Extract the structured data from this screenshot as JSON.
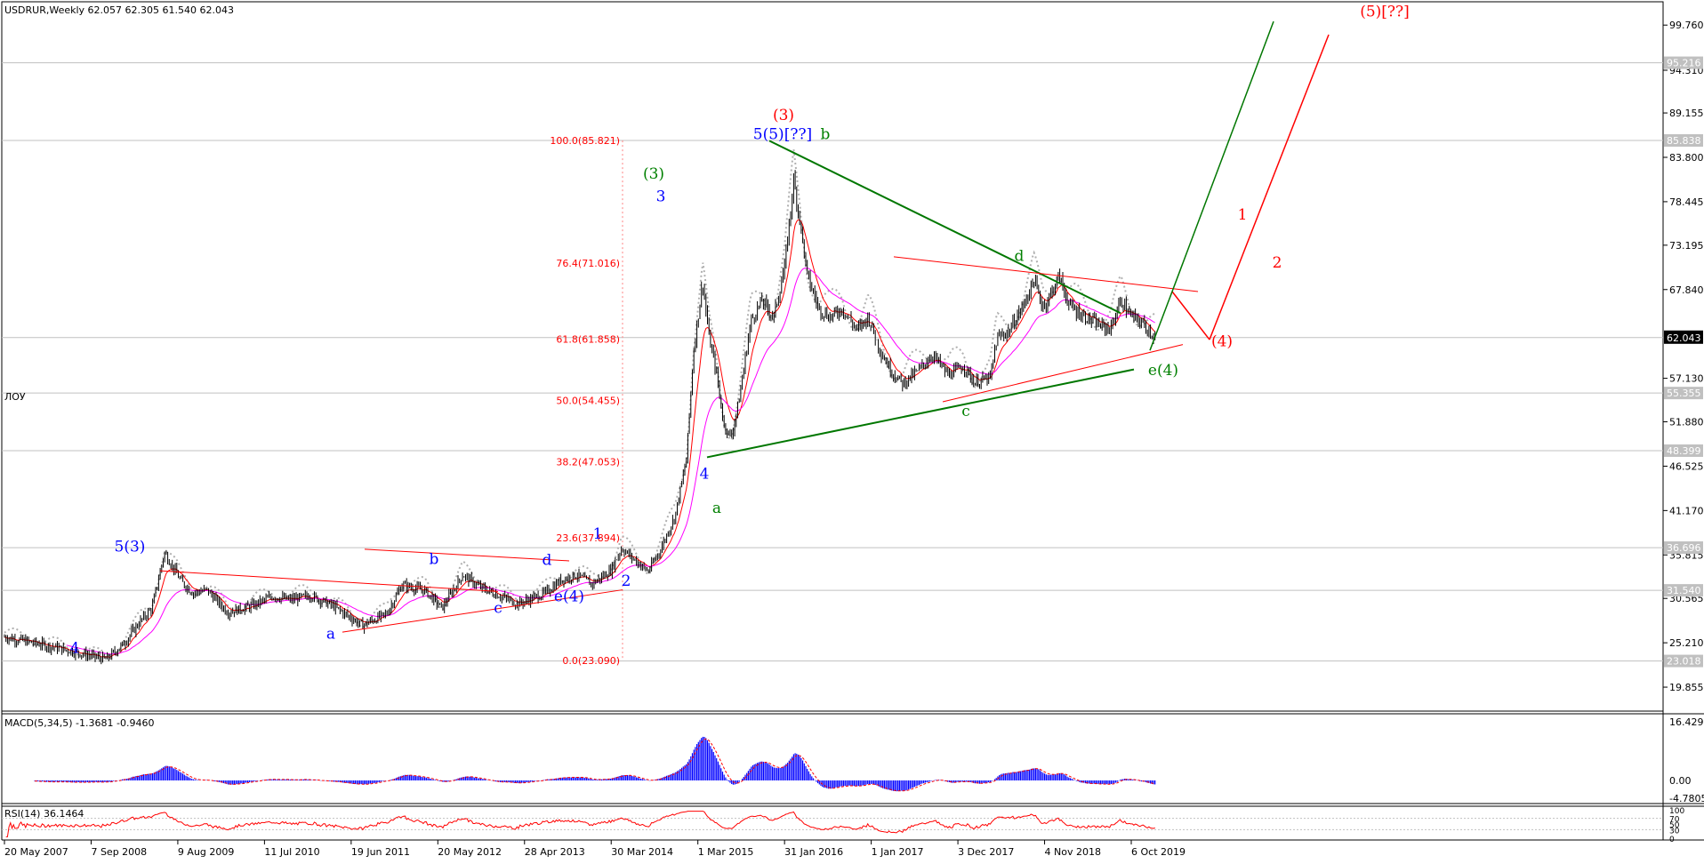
{
  "header": {
    "symbol_info": "USDRUR,Weekly  62.057 62.305 61.540 62.043",
    "side_label": "ЛОУ"
  },
  "price_axis": {
    "ticks": [
      "99.760",
      "94.310",
      "89.155",
      "83.800",
      "78.445",
      "73.195",
      "67.840",
      "62.043",
      "57.130",
      "51.880",
      "46.525",
      "41.170",
      "35.815",
      "30.565",
      "25.210",
      "19.855"
    ],
    "current_price": "62.043",
    "level_labels": [
      "95.216",
      "85.838",
      "55.355",
      "48.399",
      "36.696",
      "31.540",
      "23.018"
    ]
  },
  "date_axis": {
    "labels": [
      "20 May 2007",
      "7 Sep 2008",
      "9 Aug 2009",
      "11 Jul 2010",
      "19 Jun 2011",
      "20 May 2012",
      "28 Apr 2013",
      "30 Mar 2014",
      "1 Mar 2015",
      "31 Jan 2016",
      "1 Jan 2017",
      "3 Dec 2017",
      "4 Nov 2018",
      "6 Oct 2019"
    ]
  },
  "fib_levels": [
    {
      "label": "100.0(85.821)",
      "value": 85.821
    },
    {
      "label": "76.4(71.016)",
      "value": 71.016
    },
    {
      "label": "61.8(61.858)",
      "value": 61.858
    },
    {
      "label": "50.0(54.455)",
      "value": 54.455
    },
    {
      "label": "38.2(47.053)",
      "value": 47.053
    },
    {
      "label": "23.6(37.894)",
      "value": 37.894
    },
    {
      "label": "0.0(23.090)",
      "value": 23.09
    }
  ],
  "wave_labels": [
    {
      "text": "4",
      "color": "blue"
    },
    {
      "text": "5(3)",
      "color": "blue"
    },
    {
      "text": "a",
      "color": "blue"
    },
    {
      "text": "b",
      "color": "blue"
    },
    {
      "text": "c",
      "color": "blue"
    },
    {
      "text": "d",
      "color": "blue"
    },
    {
      "text": "e(4)",
      "color": "blue"
    },
    {
      "text": "1",
      "color": "blue"
    },
    {
      "text": "2",
      "color": "blue"
    },
    {
      "text": "3",
      "color": "blue"
    },
    {
      "text": "(3)",
      "color": "green"
    },
    {
      "text": "4",
      "color": "blue"
    },
    {
      "text": "a",
      "color": "green"
    },
    {
      "text": "5(5)[??]",
      "color": "blue"
    },
    {
      "text": "(3)",
      "color": "red"
    },
    {
      "text": "b",
      "color": "green"
    },
    {
      "text": "c",
      "color": "green"
    },
    {
      "text": "d",
      "color": "green"
    },
    {
      "text": "e(4)",
      "color": "green"
    },
    {
      "text": "(4)",
      "color": "red"
    },
    {
      "text": "1",
      "color": "red"
    },
    {
      "text": "2",
      "color": "red"
    },
    {
      "text": "(5)[??]",
      "color": "red"
    }
  ],
  "macd": {
    "label": "MACD(5,34,5) -1.3681 -0.9460",
    "ticks": [
      "16.4292",
      "0.00",
      "-4.7805"
    ]
  },
  "rsi": {
    "label": "RSI(14) 36.1464",
    "ticks": [
      "100",
      "70",
      "50",
      "30",
      "0"
    ]
  },
  "colors": {
    "background": "#ffffff",
    "candle": "#000000",
    "ma_fast": "#ff0000",
    "ma_slow": "#ff00ff",
    "dotted": "#b0b0b0",
    "green_line": "#007700",
    "red_line": "#ff0000",
    "wave_blue": "#0000ff",
    "wave_green": "#008000",
    "wave_red": "#ff0000",
    "macd_hist": "#0000ff",
    "rsi_line": "#ff0000",
    "grid": "#c0c0c0"
  },
  "chart_data": {
    "type": "candlestick",
    "title": "USDRUR,Weekly",
    "x_labels": [
      "20 May 2007",
      "7 Sep 2008",
      "9 Aug 2009",
      "11 Jul 2010",
      "19 Jun 2011",
      "20 May 2012",
      "28 Apr 2013",
      "30 Mar 2014",
      "1 Mar 2015",
      "31 Jan 2016",
      "1 Jan 2017",
      "3 Dec 2017",
      "4 Nov 2018",
      "6 Oct 2019"
    ],
    "ylim": [
      17.5,
      101.5
    ],
    "ohlc_last": {
      "open": 62.057,
      "high": 62.305,
      "low": 61.54,
      "close": 62.043
    },
    "price_path": [
      {
        "date": "2007-05-20",
        "close": 25.9
      },
      {
        "date": "2007-10-01",
        "close": 25.1
      },
      {
        "date": "2008-01-01",
        "close": 24.5
      },
      {
        "date": "2008-07-01",
        "close": 23.2
      },
      {
        "date": "2008-09-07",
        "close": 25.0
      },
      {
        "date": "2008-11-15",
        "close": 27.8
      },
      {
        "date": "2009-01-01",
        "close": 29.4
      },
      {
        "date": "2009-02-20",
        "close": 36.1
      },
      {
        "date": "2009-05-01",
        "close": 32.5
      },
      {
        "date": "2009-06-15",
        "close": 31.2
      },
      {
        "date": "2009-08-09",
        "close": 31.6
      },
      {
        "date": "2009-11-01",
        "close": 28.9
      },
      {
        "date": "2010-02-01",
        "close": 29.6
      },
      {
        "date": "2010-05-01",
        "close": 30.8
      },
      {
        "date": "2010-07-11",
        "close": 30.4
      },
      {
        "date": "2010-10-01",
        "close": 30.9
      },
      {
        "date": "2011-01-01",
        "close": 29.6
      },
      {
        "date": "2011-04-25",
        "close": 27.3
      },
      {
        "date": "2011-06-19",
        "close": 28.1
      },
      {
        "date": "2011-08-01",
        "close": 28.7
      },
      {
        "date": "2011-10-01",
        "close": 32.2
      },
      {
        "date": "2012-01-01",
        "close": 31.5
      },
      {
        "date": "2012-03-10",
        "close": 29.4
      },
      {
        "date": "2012-06-01",
        "close": 33.4
      },
      {
        "date": "2012-08-01",
        "close": 32.1
      },
      {
        "date": "2012-10-01",
        "close": 31.2
      },
      {
        "date": "2013-01-10",
        "close": 29.9
      },
      {
        "date": "2013-04-28",
        "close": 31.2
      },
      {
        "date": "2013-07-01",
        "close": 32.8
      },
      {
        "date": "2013-09-01",
        "close": 33.4
      },
      {
        "date": "2013-11-01",
        "close": 32.3
      },
      {
        "date": "2014-01-15",
        "close": 33.9
      },
      {
        "date": "2014-03-01",
        "close": 36.6
      },
      {
        "date": "2014-04-15",
        "close": 35.4
      },
      {
        "date": "2014-06-15",
        "close": 33.8
      },
      {
        "date": "2014-08-01",
        "close": 36.3
      },
      {
        "date": "2014-10-01",
        "close": 40.5
      },
      {
        "date": "2014-11-15",
        "close": 47.2
      },
      {
        "date": "2014-12-15",
        "close": 60.5
      },
      {
        "date": "2015-01-20",
        "close": 68.8
      },
      {
        "date": "2015-02-15",
        "close": 62.0
      },
      {
        "date": "2015-03-15",
        "close": 58.0
      },
      {
        "date": "2015-04-15",
        "close": 51.5
      },
      {
        "date": "2015-05-15",
        "close": 50.0
      },
      {
        "date": "2015-06-15",
        "close": 54.5
      },
      {
        "date": "2015-08-01",
        "close": 64.0
      },
      {
        "date": "2015-09-15",
        "close": 66.5
      },
      {
        "date": "2015-11-01",
        "close": 64.5
      },
      {
        "date": "2015-12-15",
        "close": 70.5
      },
      {
        "date": "2016-01-20",
        "close": 81.0
      },
      {
        "date": "2016-02-15",
        "close": 76.0
      },
      {
        "date": "2016-03-15",
        "close": 69.5
      },
      {
        "date": "2016-05-01",
        "close": 65.5
      },
      {
        "date": "2016-06-15",
        "close": 64.5
      },
      {
        "date": "2016-08-01",
        "close": 65.5
      },
      {
        "date": "2016-10-01",
        "close": 63.0
      },
      {
        "date": "2016-11-15",
        "close": 64.5
      },
      {
        "date": "2017-01-01",
        "close": 60.5
      },
      {
        "date": "2017-02-15",
        "close": 58.0
      },
      {
        "date": "2017-04-01",
        "close": 56.5
      },
      {
        "date": "2017-06-01",
        "close": 58.0
      },
      {
        "date": "2017-08-01",
        "close": 60.0
      },
      {
        "date": "2017-10-01",
        "close": 57.5
      },
      {
        "date": "2017-12-03",
        "close": 58.6
      },
      {
        "date": "2018-01-15",
        "close": 56.6
      },
      {
        "date": "2018-03-20",
        "close": 57.2
      },
      {
        "date": "2018-04-15",
        "close": 62.0
      },
      {
        "date": "2018-06-01",
        "close": 62.8
      },
      {
        "date": "2018-08-01",
        "close": 66.0
      },
      {
        "date": "2018-09-10",
        "close": 69.0
      },
      {
        "date": "2018-10-15",
        "close": 65.8
      },
      {
        "date": "2018-11-04",
        "close": 66.5
      },
      {
        "date": "2018-12-20",
        "close": 69.5
      },
      {
        "date": "2019-02-01",
        "close": 65.8
      },
      {
        "date": "2019-04-01",
        "close": 64.6
      },
      {
        "date": "2019-06-01",
        "close": 63.5
      },
      {
        "date": "2019-07-15",
        "close": 63.1
      },
      {
        "date": "2019-08-25",
        "close": 66.5
      },
      {
        "date": "2019-10-06",
        "close": 64.6
      },
      {
        "date": "2019-11-20",
        "close": 63.8
      },
      {
        "date": "2020-01-10",
        "close": 62.04
      }
    ]
  }
}
